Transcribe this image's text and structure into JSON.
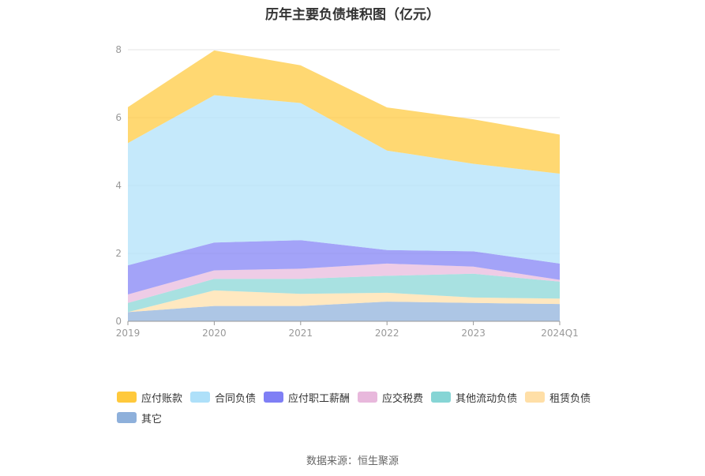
{
  "chart_data": {
    "type": "area",
    "title": "历年主要负债堆积图（亿元）",
    "categories": [
      "2019",
      "2020",
      "2021",
      "2022",
      "2023",
      "2024Q1"
    ],
    "y_ticks": [
      "0",
      "2",
      "4",
      "6",
      "8"
    ],
    "ylim": [
      0,
      8
    ],
    "stacked": true,
    "grid": true,
    "legend_position": "bottom",
    "series": [
      {
        "name": "其它",
        "color": "#8eb0db",
        "values": [
          0.27,
          0.45,
          0.45,
          0.58,
          0.54,
          0.51
        ]
      },
      {
        "name": "租赁负债",
        "color": "#ffdfa7",
        "values": [
          0.0,
          0.46,
          0.36,
          0.26,
          0.16,
          0.16
        ]
      },
      {
        "name": "其他流动负债",
        "color": "#86d5d5",
        "values": [
          0.27,
          0.34,
          0.44,
          0.5,
          0.7,
          0.5
        ]
      },
      {
        "name": "应交税费",
        "color": "#e8b8dc",
        "values": [
          0.25,
          0.25,
          0.3,
          0.36,
          0.21,
          0.05
        ]
      },
      {
        "name": "应付职工薪酬",
        "color": "#7f7ff5",
        "values": [
          0.86,
          0.82,
          0.84,
          0.4,
          0.45,
          0.48
        ]
      },
      {
        "name": "合同负债",
        "color": "#aee0f9",
        "values": [
          3.6,
          4.34,
          4.04,
          2.93,
          2.58,
          2.65
        ]
      },
      {
        "name": "应付账款",
        "color": "#ffc93c",
        "values": [
          1.06,
          1.32,
          1.11,
          1.27,
          1.31,
          1.15
        ]
      }
    ]
  },
  "legend_order": [
    "应付账款",
    "合同负债",
    "应付职工薪酬",
    "应交税费",
    "其他流动负债",
    "租赁负债",
    "其它"
  ],
  "legend_display": {
    "其它": "其它"
  },
  "source": "数据来源：恒生聚源"
}
